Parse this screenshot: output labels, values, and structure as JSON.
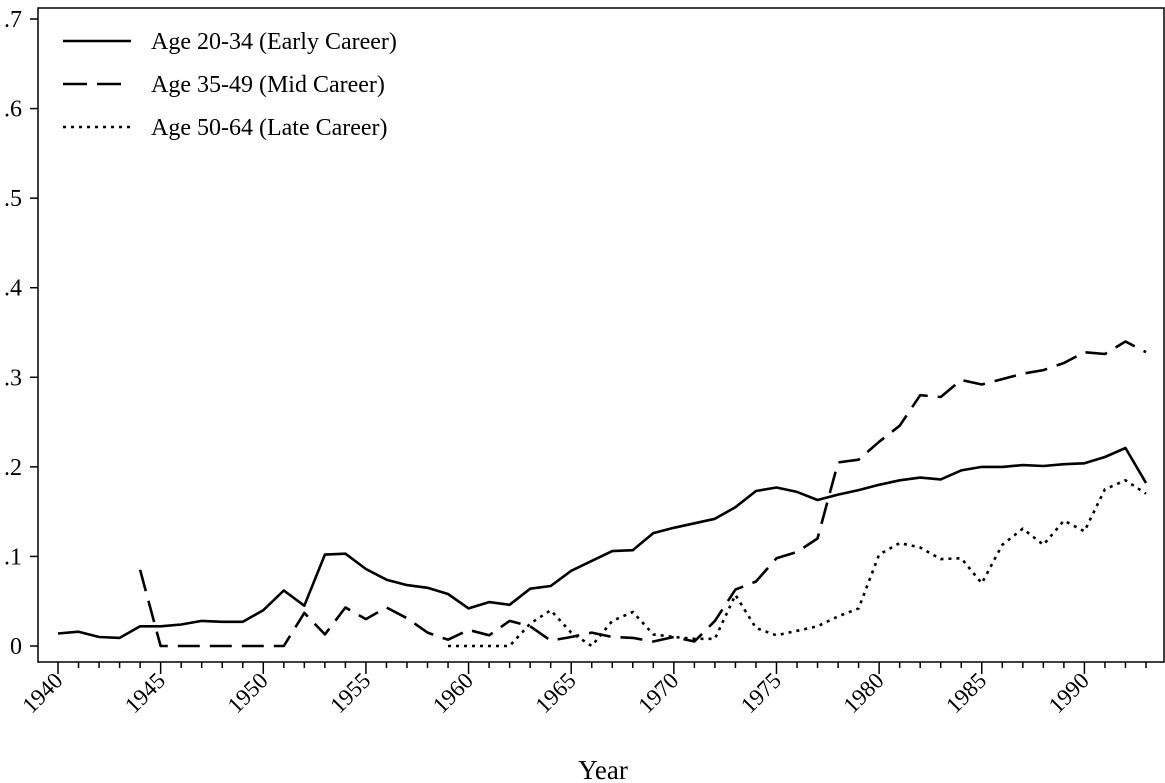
{
  "chart_data": {
    "type": "line",
    "title": "",
    "xlabel": "Year",
    "ylabel": "",
    "xlim": [
      1940,
      1993
    ],
    "ylim": [
      0,
      0.7
    ],
    "xticks": [
      1940,
      1945,
      1950,
      1955,
      1960,
      1965,
      1970,
      1975,
      1980,
      1985,
      1990
    ],
    "xtick_labels": [
      "1940",
      "1945",
      "1950",
      "1955",
      "1960",
      "1965",
      "1970",
      "1975",
      "1980",
      "1985",
      "1990"
    ],
    "yticks": [
      0,
      0.1,
      0.2,
      0.3,
      0.4,
      0.5,
      0.6,
      0.7
    ],
    "ytick_labels": [
      "0",
      ".1",
      ".2",
      ".3",
      ".4",
      ".5",
      ".6",
      ".7"
    ],
    "grid": false,
    "legend_position": "top-left",
    "series": [
      {
        "name": "Age 20-34 (Early Career)",
        "style": "solid",
        "color": "#000000",
        "x": [
          1940,
          1941,
          1942,
          1943,
          1944,
          1945,
          1946,
          1947,
          1948,
          1949,
          1950,
          1951,
          1952,
          1953,
          1954,
          1955,
          1956,
          1957,
          1958,
          1959,
          1960,
          1961,
          1962,
          1963,
          1964,
          1965,
          1966,
          1967,
          1968,
          1969,
          1970,
          1971,
          1972,
          1973,
          1974,
          1975,
          1976,
          1977,
          1978,
          1979,
          1980,
          1981,
          1982,
          1983,
          1984,
          1985,
          1986,
          1987,
          1988,
          1989,
          1990,
          1991,
          1992,
          1993
        ],
        "y": [
          0.014,
          0.016,
          0.01,
          0.009,
          0.022,
          0.022,
          0.024,
          0.028,
          0.027,
          0.027,
          0.04,
          0.062,
          0.045,
          0.102,
          0.103,
          0.086,
          0.074,
          0.068,
          0.065,
          0.058,
          0.042,
          0.049,
          0.046,
          0.064,
          0.067,
          0.084,
          0.095,
          0.106,
          0.107,
          0.126,
          0.132,
          0.137,
          0.142,
          0.155,
          0.173,
          0.177,
          0.172,
          0.163,
          0.169,
          0.174,
          0.18,
          0.185,
          0.188,
          0.186,
          0.196,
          0.2,
          0.2,
          0.202,
          0.201,
          0.203,
          0.204,
          0.211,
          0.221,
          0.182
        ]
      },
      {
        "name": "Age 35-49 (Mid Career)",
        "style": "dashed",
        "color": "#000000",
        "x": [
          1944,
          1945,
          1946,
          1947,
          1948,
          1949,
          1950,
          1951,
          1952,
          1953,
          1954,
          1955,
          1956,
          1957,
          1958,
          1959,
          1960,
          1961,
          1962,
          1963,
          1964,
          1965,
          1966,
          1967,
          1968,
          1969,
          1970,
          1971,
          1972,
          1973,
          1974,
          1975,
          1976,
          1977,
          1978,
          1979,
          1980,
          1981,
          1982,
          1983,
          1984,
          1985,
          1986,
          1987,
          1988,
          1989,
          1990,
          1991,
          1992,
          1993
        ],
        "y": [
          0.085,
          0.0,
          0.0,
          0.0,
          0.0,
          0.0,
          0.0,
          0.0,
          0.037,
          0.013,
          0.043,
          0.03,
          0.043,
          0.031,
          0.015,
          0.007,
          0.018,
          0.012,
          0.028,
          0.022,
          0.006,
          0.01,
          0.015,
          0.01,
          0.009,
          0.005,
          0.01,
          0.005,
          0.028,
          0.063,
          0.072,
          0.098,
          0.105,
          0.12,
          0.205,
          0.208,
          0.228,
          0.246,
          0.28,
          0.278,
          0.297,
          0.292,
          0.298,
          0.304,
          0.308,
          0.316,
          0.328,
          0.326,
          0.34,
          0.328
        ]
      },
      {
        "name": "Age 50-64 (Late Career)",
        "style": "dotted",
        "color": "#000000",
        "x": [
          1959,
          1960,
          1961,
          1962,
          1963,
          1964,
          1965,
          1966,
          1967,
          1968,
          1969,
          1970,
          1971,
          1972,
          1973,
          1974,
          1975,
          1976,
          1977,
          1978,
          1979,
          1980,
          1981,
          1982,
          1983,
          1984,
          1985,
          1986,
          1987,
          1988,
          1989,
          1990,
          1991,
          1992,
          1993
        ],
        "y": [
          0.0,
          0.0,
          0.0,
          0.0,
          0.025,
          0.04,
          0.015,
          0.0,
          0.028,
          0.038,
          0.013,
          0.01,
          0.008,
          0.008,
          0.057,
          0.02,
          0.012,
          0.017,
          0.022,
          0.033,
          0.042,
          0.102,
          0.115,
          0.11,
          0.097,
          0.098,
          0.07,
          0.113,
          0.131,
          0.113,
          0.14,
          0.128,
          0.175,
          0.185,
          0.17
        ]
      }
    ]
  }
}
